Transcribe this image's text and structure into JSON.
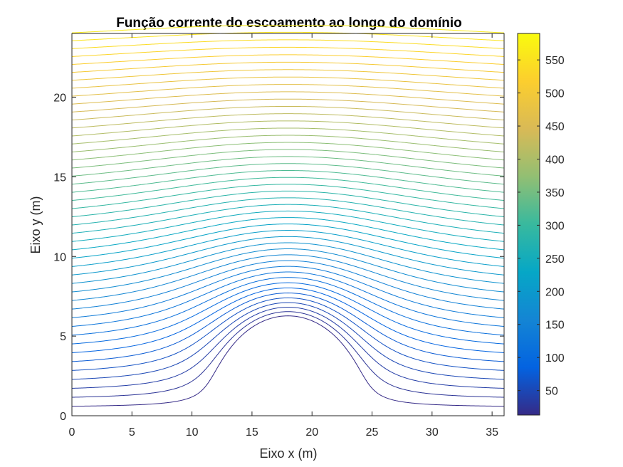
{
  "chart_data": {
    "type": "contour",
    "title": "Função corrente do escoamento ao longo do domínio",
    "xlabel": "Eixo x (m)",
    "ylabel": "Eixo y (m)",
    "xlim": [
      0,
      36
    ],
    "ylim": [
      0,
      24
    ],
    "xticks": [
      0,
      5,
      10,
      15,
      20,
      25,
      30,
      35
    ],
    "yticks": [
      0,
      5,
      10,
      15,
      20
    ],
    "grid": false,
    "obstacle": {
      "center_x": 18,
      "radius": 6
    },
    "contour_levels": {
      "stream_function_min": 13,
      "stream_function_max": 590,
      "count": 48,
      "stream_function_per_meter_far_field": 24.5
    },
    "colorbar": {
      "location": "right",
      "colormap": "parula",
      "range": [
        13,
        590
      ],
      "ticks": [
        50,
        100,
        150,
        200,
        250,
        300,
        350,
        400,
        450,
        500,
        550
      ]
    }
  },
  "colors": {
    "parula": [
      "#352a87",
      "#0363e1",
      "#1485d4",
      "#06a7c6",
      "#38b99e",
      "#92bf73",
      "#d9ba56",
      "#fcce2e",
      "#f9fb0e"
    ]
  }
}
